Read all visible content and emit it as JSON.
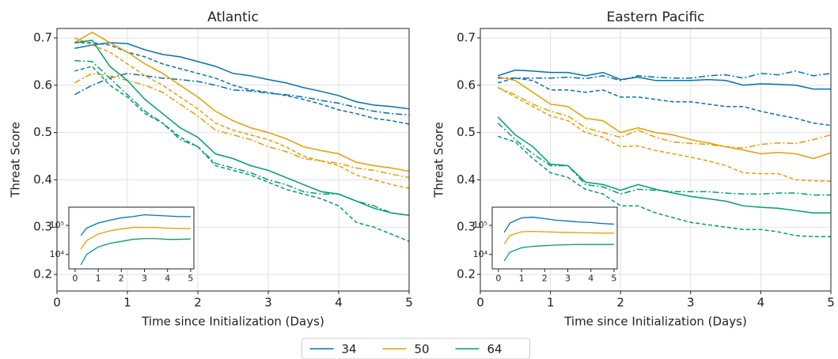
{
  "chart_data": [
    {
      "type": "line",
      "title": "Atlantic",
      "xlabel": "Time since Initialization (Days)",
      "ylabel": "Threat Score",
      "x": [
        0.25,
        0.5,
        0.75,
        1.0,
        1.25,
        1.5,
        1.75,
        2.0,
        2.25,
        2.5,
        2.75,
        3.0,
        3.25,
        3.5,
        3.75,
        4.0,
        4.25,
        4.5,
        4.75,
        5.0
      ],
      "xlim": [
        0,
        5
      ],
      "xticks": [
        0,
        1,
        2,
        3,
        4,
        5
      ],
      "ylim": [
        0.165,
        0.72
      ],
      "yticks": [
        0.2,
        0.3,
        0.4,
        0.5,
        0.6,
        0.7
      ],
      "grid": true,
      "legend": "bottom",
      "series": [
        {
          "name": "34",
          "color": "#0072b2",
          "dash": "solid",
          "values": [
            0.678,
            0.685,
            0.69,
            0.688,
            0.675,
            0.665,
            0.66,
            0.65,
            0.64,
            0.625,
            0.62,
            0.612,
            0.605,
            0.595,
            0.587,
            0.578,
            0.565,
            0.558,
            0.555,
            0.55
          ]
        },
        {
          "color": "#0072b2",
          "dash": "dashed",
          "values": [
            0.69,
            0.69,
            0.685,
            0.67,
            0.66,
            0.645,
            0.635,
            0.625,
            0.615,
            0.6,
            0.59,
            0.585,
            0.578,
            0.57,
            0.56,
            0.548,
            0.54,
            0.53,
            0.525,
            0.518
          ]
        },
        {
          "color": "#0072b2",
          "dash": "dashdot",
          "values": [
            0.58,
            0.6,
            0.615,
            0.625,
            0.62,
            0.615,
            0.612,
            0.608,
            0.6,
            0.59,
            0.588,
            0.583,
            0.58,
            0.575,
            0.568,
            0.562,
            0.553,
            0.545,
            0.54,
            0.537
          ]
        },
        {
          "name": "50",
          "color": "#e69f00",
          "dash": "solid",
          "values": [
            0.69,
            0.712,
            0.69,
            0.67,
            0.645,
            0.625,
            0.6,
            0.575,
            0.545,
            0.525,
            0.51,
            0.5,
            0.487,
            0.47,
            0.462,
            0.455,
            0.437,
            0.43,
            0.425,
            0.418
          ]
        },
        {
          "color": "#e69f00",
          "dash": "dashed",
          "values": [
            0.7,
            0.685,
            0.67,
            0.645,
            0.62,
            0.6,
            0.575,
            0.55,
            0.52,
            0.505,
            0.495,
            0.485,
            0.47,
            0.45,
            0.44,
            0.43,
            0.41,
            0.4,
            0.39,
            0.382
          ]
        },
        {
          "color": "#e69f00",
          "dash": "dashdot",
          "values": [
            0.605,
            0.625,
            0.62,
            0.61,
            0.6,
            0.585,
            0.56,
            0.535,
            0.505,
            0.495,
            0.485,
            0.47,
            0.46,
            0.445,
            0.44,
            0.435,
            0.425,
            0.42,
            0.412,
            0.405
          ]
        },
        {
          "name": "64",
          "color": "#009e73",
          "dash": "solid",
          "values": [
            0.69,
            0.695,
            0.64,
            0.61,
            0.57,
            0.54,
            0.51,
            0.49,
            0.455,
            0.445,
            0.43,
            0.42,
            0.405,
            0.39,
            0.375,
            0.37,
            0.355,
            0.34,
            0.33,
            0.325
          ]
        },
        {
          "color": "#009e73",
          "dash": "dashed",
          "values": [
            0.63,
            0.64,
            0.6,
            0.575,
            0.54,
            0.52,
            0.49,
            0.47,
            0.43,
            0.42,
            0.41,
            0.395,
            0.38,
            0.37,
            0.36,
            0.345,
            0.31,
            0.3,
            0.285,
            0.27
          ]
        },
        {
          "color": "#009e73",
          "dash": "dashdot",
          "values": [
            0.652,
            0.65,
            0.615,
            0.58,
            0.545,
            0.52,
            0.485,
            0.47,
            0.435,
            0.425,
            0.415,
            0.4,
            0.39,
            0.375,
            0.37,
            0.37,
            0.355,
            0.345,
            0.33,
            0.325
          ]
        }
      ]
    },
    {
      "type": "line",
      "log_y": true,
      "x": [
        0.25,
        0.5,
        1.0,
        1.5,
        2.0,
        2.5,
        3.0,
        3.5,
        4.0,
        4.5,
        5.0
      ],
      "xlim": [
        -0.27,
        5.14
      ],
      "xticks": [
        0,
        1,
        2,
        3,
        4,
        5
      ],
      "ylim": [
        3200,
        420000
      ],
      "yticks": [
        {
          "value": 10000,
          "label": "10⁴"
        },
        {
          "value": 100000,
          "label": "10⁵"
        }
      ],
      "grid": false,
      "series": [
        {
          "color": "#0072b2",
          "dash": "solid",
          "values": [
            45000,
            80000,
            120000,
            150000,
            180000,
            200000,
            230000,
            220000,
            210000,
            200000,
            200000
          ]
        },
        {
          "color": "#e69f00",
          "dash": "solid",
          "values": [
            15000,
            30000,
            50000,
            65000,
            75000,
            85000,
            85000,
            85000,
            80000,
            78000,
            78000
          ]
        },
        {
          "color": "#009e73",
          "dash": "solid",
          "values": [
            4400,
            10000,
            18000,
            24000,
            28000,
            33000,
            35000,
            35000,
            33000,
            33000,
            34000
          ]
        }
      ]
    },
    {
      "type": "line",
      "title": "Eastern Pacific",
      "xlabel": "Time since Initialization (Days)",
      "ylabel": "Threat Score",
      "x": [
        0.25,
        0.5,
        0.75,
        1.0,
        1.25,
        1.5,
        1.75,
        2.0,
        2.25,
        2.5,
        2.75,
        3.0,
        3.25,
        3.5,
        3.75,
        4.0,
        4.25,
        4.5,
        4.75,
        5.0
      ],
      "xlim": [
        0,
        5
      ],
      "xticks": [
        0,
        1,
        2,
        3,
        4,
        5
      ],
      "ylim": [
        0.165,
        0.72
      ],
      "yticks": [
        0.2,
        0.3,
        0.4,
        0.5,
        0.6,
        0.7
      ],
      "grid": true,
      "series": [
        {
          "color": "#0072b2",
          "dash": "solid",
          "values": [
            0.62,
            0.632,
            0.63,
            0.627,
            0.627,
            0.62,
            0.627,
            0.612,
            0.617,
            0.61,
            0.61,
            0.61,
            0.612,
            0.61,
            0.6,
            0.603,
            0.602,
            0.6,
            0.592,
            0.592
          ]
        },
        {
          "color": "#0072b2",
          "dash": "dashed",
          "values": [
            0.605,
            0.615,
            0.61,
            0.59,
            0.59,
            0.585,
            0.59,
            0.575,
            0.575,
            0.57,
            0.565,
            0.565,
            0.56,
            0.555,
            0.555,
            0.545,
            0.537,
            0.53,
            0.52,
            0.515
          ]
        },
        {
          "color": "#0072b2",
          "dash": "dashdot",
          "values": [
            0.615,
            0.615,
            0.615,
            0.615,
            0.617,
            0.614,
            0.62,
            0.61,
            0.62,
            0.617,
            0.615,
            0.615,
            0.62,
            0.622,
            0.615,
            0.625,
            0.622,
            0.63,
            0.62,
            0.625
          ]
        },
        {
          "color": "#e69f00",
          "dash": "solid",
          "values": [
            0.618,
            0.61,
            0.585,
            0.56,
            0.555,
            0.53,
            0.525,
            0.5,
            0.51,
            0.5,
            0.495,
            0.485,
            0.478,
            0.47,
            0.463,
            0.455,
            0.458,
            0.455,
            0.445,
            0.457
          ]
        },
        {
          "color": "#e69f00",
          "dash": "dashed",
          "values": [
            0.595,
            0.575,
            0.555,
            0.535,
            0.525,
            0.5,
            0.49,
            0.47,
            0.472,
            0.462,
            0.455,
            0.448,
            0.44,
            0.43,
            0.415,
            0.413,
            0.413,
            0.4,
            0.398,
            0.397
          ]
        },
        {
          "color": "#e69f00",
          "dash": "dashdot",
          "values": [
            0.595,
            0.58,
            0.56,
            0.545,
            0.535,
            0.51,
            0.5,
            0.49,
            0.505,
            0.49,
            0.48,
            0.477,
            0.475,
            0.47,
            0.467,
            0.475,
            0.478,
            0.477,
            0.485,
            0.495
          ]
        },
        {
          "color": "#009e73",
          "dash": "solid",
          "values": [
            0.533,
            0.495,
            0.47,
            0.433,
            0.43,
            0.395,
            0.39,
            0.378,
            0.39,
            0.38,
            0.372,
            0.365,
            0.36,
            0.355,
            0.345,
            0.342,
            0.34,
            0.335,
            0.33,
            0.33
          ]
        },
        {
          "color": "#009e73",
          "dash": "dashed",
          "values": [
            0.492,
            0.48,
            0.445,
            0.415,
            0.405,
            0.38,
            0.37,
            0.345,
            0.345,
            0.33,
            0.32,
            0.31,
            0.305,
            0.3,
            0.295,
            0.295,
            0.29,
            0.282,
            0.28,
            0.28
          ]
        },
        {
          "color": "#009e73",
          "dash": "dashdot",
          "values": [
            0.52,
            0.485,
            0.455,
            0.43,
            0.43,
            0.39,
            0.385,
            0.37,
            0.38,
            0.378,
            0.375,
            0.375,
            0.375,
            0.372,
            0.37,
            0.37,
            0.372,
            0.372,
            0.368,
            0.368
          ]
        }
      ]
    },
    {
      "type": "line",
      "log_y": true,
      "x": [
        0.25,
        0.5,
        1.0,
        1.5,
        2.0,
        2.5,
        3.0,
        3.5,
        4.0,
        4.5,
        5.0
      ],
      "xlim": [
        -0.27,
        5.14
      ],
      "xticks": [
        0,
        1,
        2,
        3,
        4,
        5
      ],
      "ylim": [
        3200,
        420000
      ],
      "yticks": [
        {
          "value": 10000,
          "label": "10⁴"
        },
        {
          "value": 100000,
          "label": "10⁵"
        }
      ],
      "grid": false,
      "series": [
        {
          "color": "#0072b2",
          "dash": "solid",
          "values": [
            57000,
            120000,
            180000,
            190000,
            170000,
            150000,
            140000,
            130000,
            125000,
            115000,
            110000
          ]
        },
        {
          "color": "#e69f00",
          "dash": "solid",
          "values": [
            23000,
            45000,
            60000,
            62000,
            60000,
            58000,
            57000,
            56000,
            55000,
            54000,
            54000
          ]
        },
        {
          "color": "#009e73",
          "dash": "solid",
          "values": [
            6000,
            12000,
            17000,
            19000,
            20000,
            21000,
            21500,
            22000,
            22000,
            22000,
            22000
          ]
        }
      ]
    }
  ]
}
